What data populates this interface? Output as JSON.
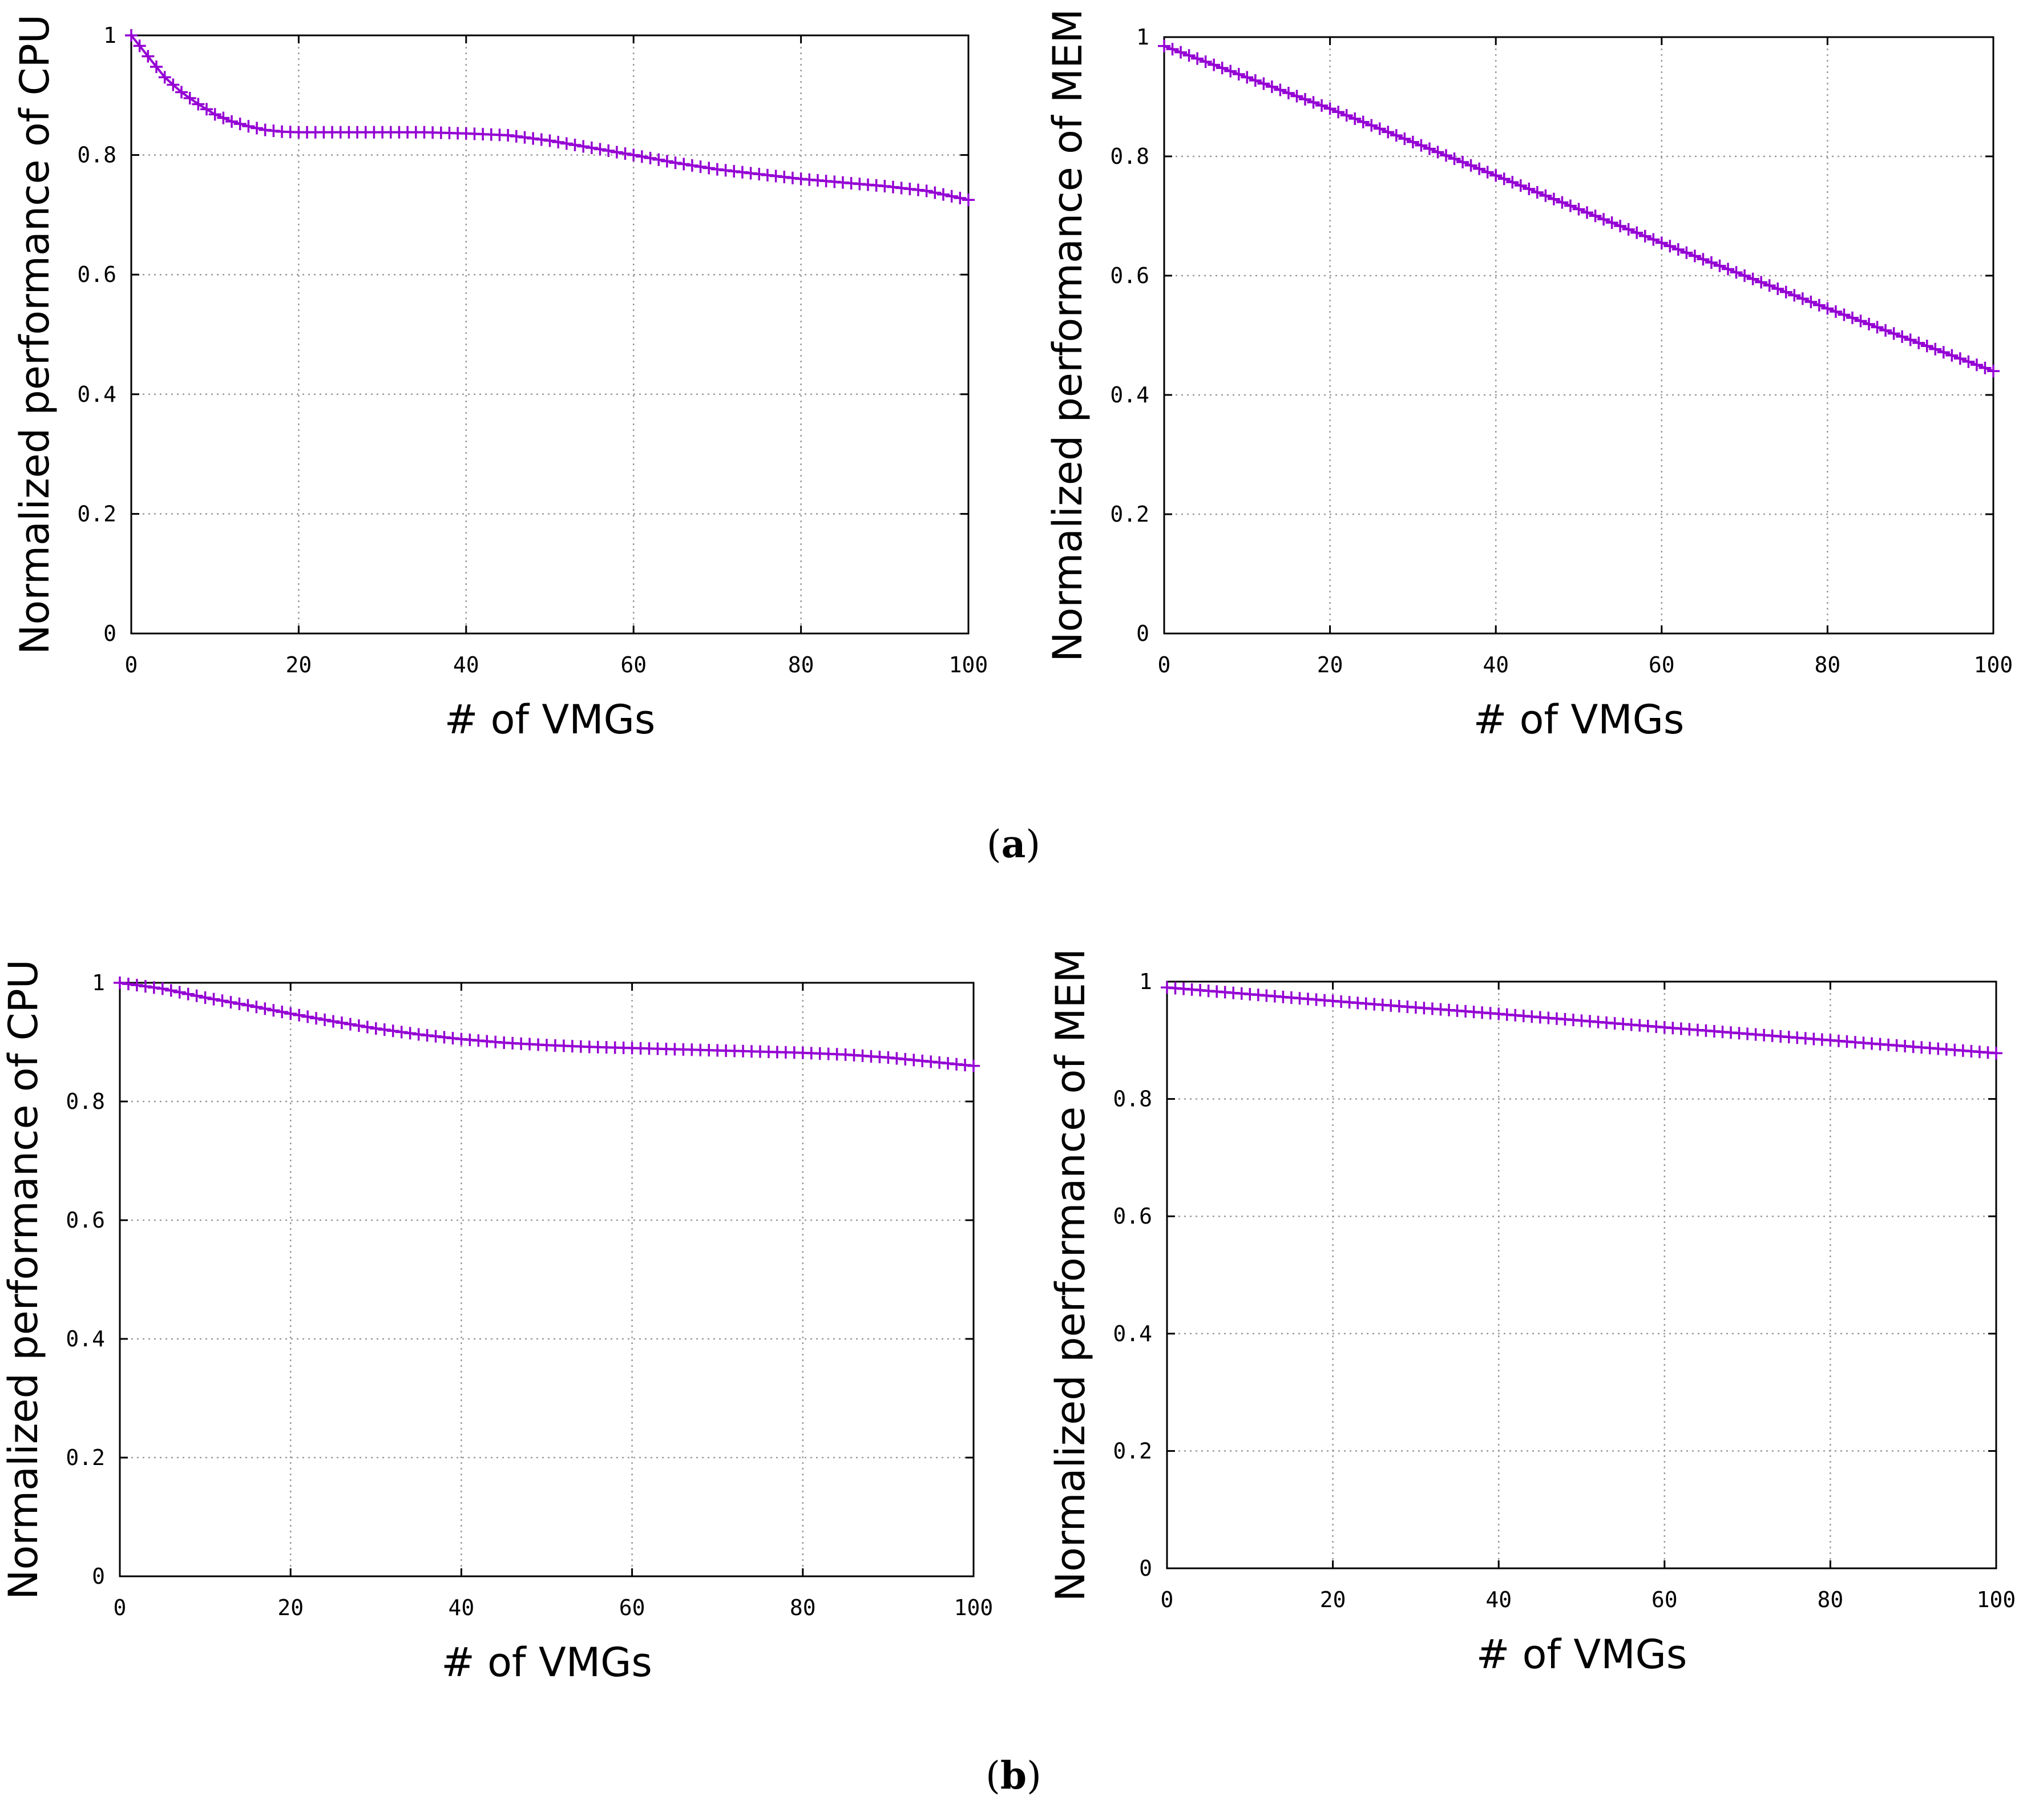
{
  "colors": {
    "series": "#9400d3",
    "grid": "#9a9a9a",
    "axis": "#000000"
  },
  "captions": [
    "a",
    "b"
  ],
  "chart_data": [
    {
      "type": "line",
      "panel": "a",
      "position_hint": "top-left",
      "title": "",
      "xlabel": "# of VMGs",
      "ylabel": "Normalized performance of CPU",
      "xlim": [
        0,
        100
      ],
      "ylim": [
        0,
        1
      ],
      "xticks": [
        "0",
        "20",
        "40",
        "60",
        "80",
        "100"
      ],
      "yticks": [
        "0",
        "0.2",
        "0.4",
        "0.6",
        "0.8",
        "1"
      ],
      "grid": true,
      "marker": "plus",
      "series": [
        {
          "name": "CPU",
          "points": [
            [
              0,
              1.0
            ],
            [
              2,
              0.965
            ],
            [
              4,
              0.93
            ],
            [
              6,
              0.905
            ],
            [
              8,
              0.885
            ],
            [
              10,
              0.868
            ],
            [
              12,
              0.856
            ],
            [
              14,
              0.848
            ],
            [
              16,
              0.842
            ],
            [
              18,
              0.839
            ],
            [
              20,
              0.838
            ],
            [
              25,
              0.838
            ],
            [
              30,
              0.838
            ],
            [
              35,
              0.838
            ],
            [
              40,
              0.836
            ],
            [
              45,
              0.833
            ],
            [
              50,
              0.824
            ],
            [
              55,
              0.812
            ],
            [
              60,
              0.8
            ],
            [
              65,
              0.787
            ],
            [
              70,
              0.776
            ],
            [
              75,
              0.768
            ],
            [
              80,
              0.76
            ],
            [
              85,
              0.754
            ],
            [
              90,
              0.748
            ],
            [
              95,
              0.74
            ],
            [
              100,
              0.725
            ]
          ]
        }
      ]
    },
    {
      "type": "line",
      "panel": "a",
      "position_hint": "top-right",
      "title": "",
      "xlabel": "# of VMGs",
      "ylabel": "Normalized performance of MEM",
      "xlim": [
        0,
        100
      ],
      "ylim": [
        0,
        1
      ],
      "xticks": [
        "0",
        "20",
        "40",
        "60",
        "80",
        "100"
      ],
      "yticks": [
        "0",
        "0.2",
        "0.4",
        "0.6",
        "0.8",
        "1"
      ],
      "grid": true,
      "marker": "plus",
      "series": [
        {
          "name": "MEM",
          "points": [
            [
              0,
              0.985
            ],
            [
              20,
              0.88
            ],
            [
              40,
              0.768
            ],
            [
              60,
              0.655
            ],
            [
              80,
              0.545
            ],
            [
              100,
              0.44
            ]
          ]
        }
      ]
    },
    {
      "type": "line",
      "panel": "b",
      "position_hint": "bottom-left",
      "title": "",
      "xlabel": "# of VMGs",
      "ylabel": "Normalized performance of CPU",
      "xlim": [
        0,
        100
      ],
      "ylim": [
        0,
        1
      ],
      "xticks": [
        "0",
        "20",
        "40",
        "60",
        "80",
        "100"
      ],
      "yticks": [
        "0",
        "0.2",
        "0.4",
        "0.6",
        "0.8",
        "1"
      ],
      "grid": true,
      "marker": "plus",
      "series": [
        {
          "name": "CPU",
          "points": [
            [
              0,
              1.0
            ],
            [
              5,
              0.99
            ],
            [
              10,
              0.975
            ],
            [
              15,
              0.962
            ],
            [
              20,
              0.948
            ],
            [
              25,
              0.935
            ],
            [
              30,
              0.923
            ],
            [
              35,
              0.913
            ],
            [
              40,
              0.905
            ],
            [
              45,
              0.899
            ],
            [
              50,
              0.895
            ],
            [
              55,
              0.892
            ],
            [
              60,
              0.89
            ],
            [
              65,
              0.888
            ],
            [
              70,
              0.886
            ],
            [
              75,
              0.884
            ],
            [
              80,
              0.882
            ],
            [
              85,
              0.879
            ],
            [
              90,
              0.874
            ],
            [
              95,
              0.867
            ],
            [
              100,
              0.86
            ]
          ]
        }
      ]
    },
    {
      "type": "line",
      "panel": "b",
      "position_hint": "bottom-right",
      "title": "",
      "xlabel": "# of VMGs",
      "ylabel": "Normalized performance of MEM",
      "xlim": [
        0,
        100
      ],
      "ylim": [
        0,
        1
      ],
      "xticks": [
        "0",
        "20",
        "40",
        "60",
        "80",
        "100"
      ],
      "yticks": [
        "0",
        "0.2",
        "0.4",
        "0.6",
        "0.8",
        "1"
      ],
      "grid": true,
      "marker": "plus",
      "series": [
        {
          "name": "MEM",
          "points": [
            [
              0,
              0.99
            ],
            [
              20,
              0.967
            ],
            [
              40,
              0.945
            ],
            [
              60,
              0.922
            ],
            [
              80,
              0.9
            ],
            [
              100,
              0.878
            ]
          ]
        }
      ]
    }
  ]
}
